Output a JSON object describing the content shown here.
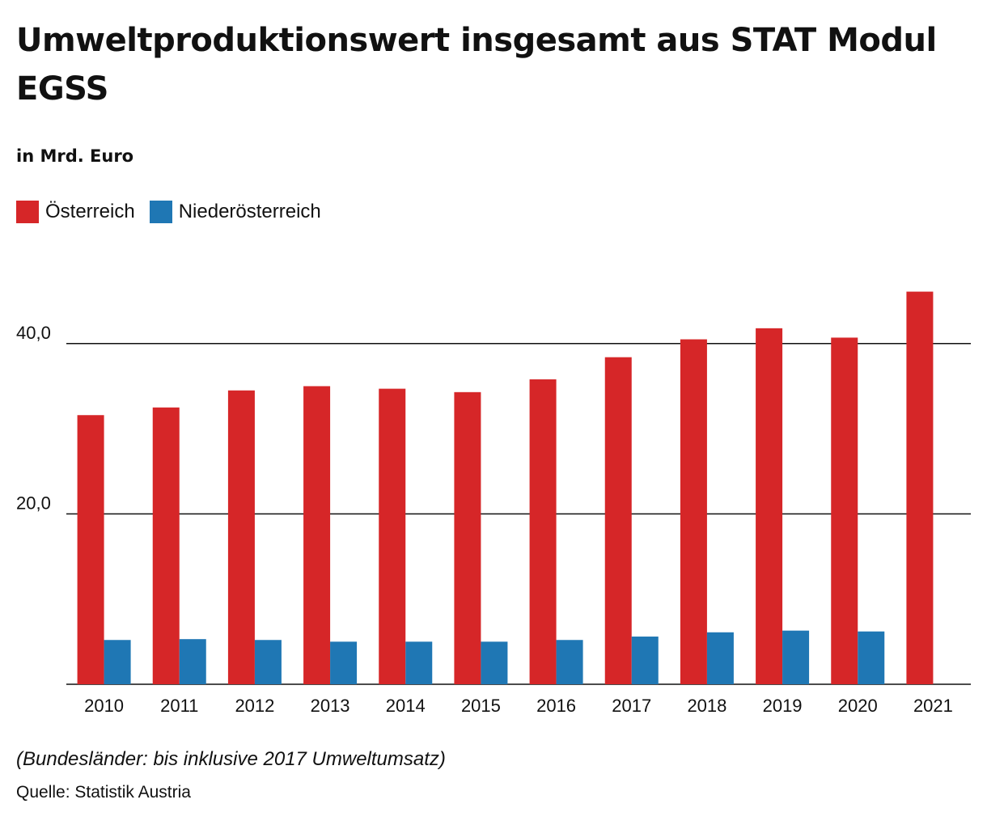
{
  "title": "Umweltproduktionswert insgesamt aus STAT Modul EGSS",
  "subtitle": "in Mrd. Euro",
  "note": "(Bundesländer: bis inklusive 2017 Umweltumsatz)",
  "source": "Quelle: Statistik Austria",
  "colors": {
    "oesterreich": "#d62628",
    "niederoesterreich": "#1f77b4"
  },
  "legend": [
    {
      "label": "Österreich",
      "color": "#d62628"
    },
    {
      "label": "Niederösterreich",
      "color": "#1f77b4"
    }
  ],
  "chart_data": {
    "type": "bar",
    "title": "Umweltproduktionswert insgesamt aus STAT Modul EGSS",
    "subtitle": "in Mrd. Euro",
    "xlabel": "",
    "ylabel": "",
    "ylim": [
      0,
      48
    ],
    "yticks": [
      20,
      40
    ],
    "ytick_labels": [
      "20,0",
      "40,0"
    ],
    "grid": true,
    "legend_position": "top-left",
    "categories": [
      "2010",
      "2011",
      "2012",
      "2013",
      "2014",
      "2015",
      "2016",
      "2017",
      "2018",
      "2019",
      "2020",
      "2021"
    ],
    "series": [
      {
        "name": "Österreich",
        "color": "#d62628",
        "values": [
          31.6,
          32.5,
          34.5,
          35.0,
          34.7,
          34.3,
          35.8,
          38.4,
          40.5,
          41.8,
          40.7,
          46.1
        ]
      },
      {
        "name": "Niederösterreich",
        "color": "#1f77b4",
        "values": [
          5.2,
          5.3,
          5.2,
          5.0,
          5.0,
          5.0,
          5.2,
          5.6,
          6.1,
          6.3,
          6.2,
          null
        ]
      }
    ]
  }
}
